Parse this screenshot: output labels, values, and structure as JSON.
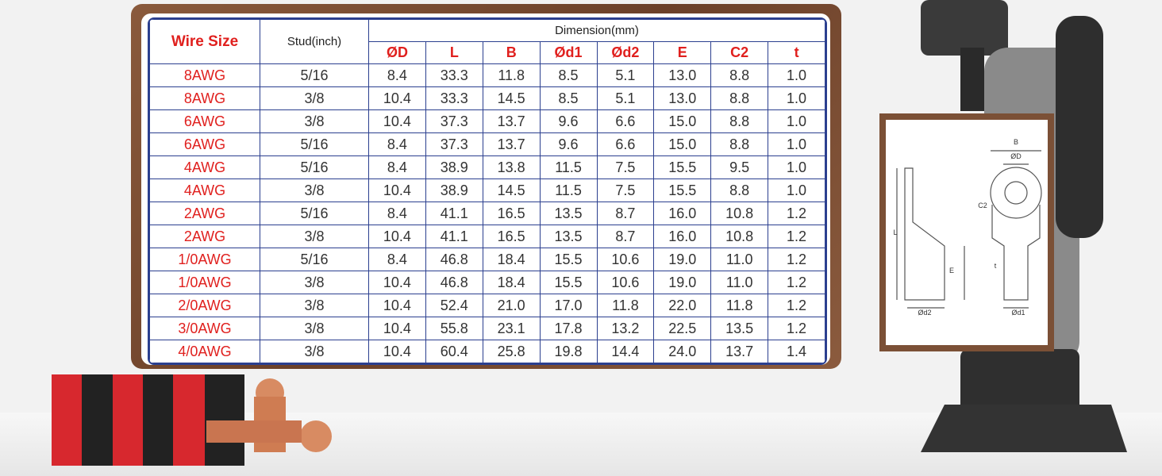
{
  "table": {
    "headers": {
      "wire_size": "Wire Size",
      "stud": "Stud(inch)",
      "dimension": "Dimension(mm)",
      "columns": [
        "ØD",
        "L",
        "B",
        "Ød1",
        "Ød2",
        "E",
        "C2",
        "t"
      ]
    },
    "rows": [
      [
        "8AWG",
        "5/16",
        "8.4",
        "33.3",
        "11.8",
        "8.5",
        "5.1",
        "13.0",
        "8.8",
        "1.0"
      ],
      [
        "8AWG",
        "3/8",
        "10.4",
        "33.3",
        "14.5",
        "8.5",
        "5.1",
        "13.0",
        "8.8",
        "1.0"
      ],
      [
        "6AWG",
        "3/8",
        "10.4",
        "37.3",
        "13.7",
        "9.6",
        "6.6",
        "15.0",
        "8.8",
        "1.0"
      ],
      [
        "6AWG",
        "5/16",
        "8.4",
        "37.3",
        "13.7",
        "9.6",
        "6.6",
        "15.0",
        "8.8",
        "1.0"
      ],
      [
        "4AWG",
        "5/16",
        "8.4",
        "38.9",
        "13.8",
        "11.5",
        "7.5",
        "15.5",
        "9.5",
        "1.0"
      ],
      [
        "4AWG",
        "3/8",
        "10.4",
        "38.9",
        "14.5",
        "11.5",
        "7.5",
        "15.5",
        "8.8",
        "1.0"
      ],
      [
        "2AWG",
        "5/16",
        "8.4",
        "41.1",
        "16.5",
        "13.5",
        "8.7",
        "16.0",
        "10.8",
        "1.2"
      ],
      [
        "2AWG",
        "3/8",
        "10.4",
        "41.1",
        "16.5",
        "13.5",
        "8.7",
        "16.0",
        "10.8",
        "1.2"
      ],
      [
        "1/0AWG",
        "5/16",
        "8.4",
        "46.8",
        "18.4",
        "15.5",
        "10.6",
        "19.0",
        "11.0",
        "1.2"
      ],
      [
        "1/0AWG",
        "3/8",
        "10.4",
        "46.8",
        "18.4",
        "15.5",
        "10.6",
        "19.0",
        "11.0",
        "1.2"
      ],
      [
        "2/0AWG",
        "3/8",
        "10.4",
        "52.4",
        "21.0",
        "17.0",
        "11.8",
        "22.0",
        "11.8",
        "1.2"
      ],
      [
        "3/0AWG",
        "3/8",
        "10.4",
        "55.8",
        "23.1",
        "17.8",
        "13.2",
        "22.5",
        "13.5",
        "1.2"
      ],
      [
        "4/0AWG",
        "3/8",
        "10.4",
        "60.4",
        "25.8",
        "19.8",
        "14.4",
        "24.0",
        "13.7",
        "1.4"
      ]
    ]
  },
  "diagram": {
    "labels": [
      "B",
      "ØD",
      "C2",
      "L",
      "E",
      "t",
      "Ød2",
      "Ød1"
    ]
  }
}
